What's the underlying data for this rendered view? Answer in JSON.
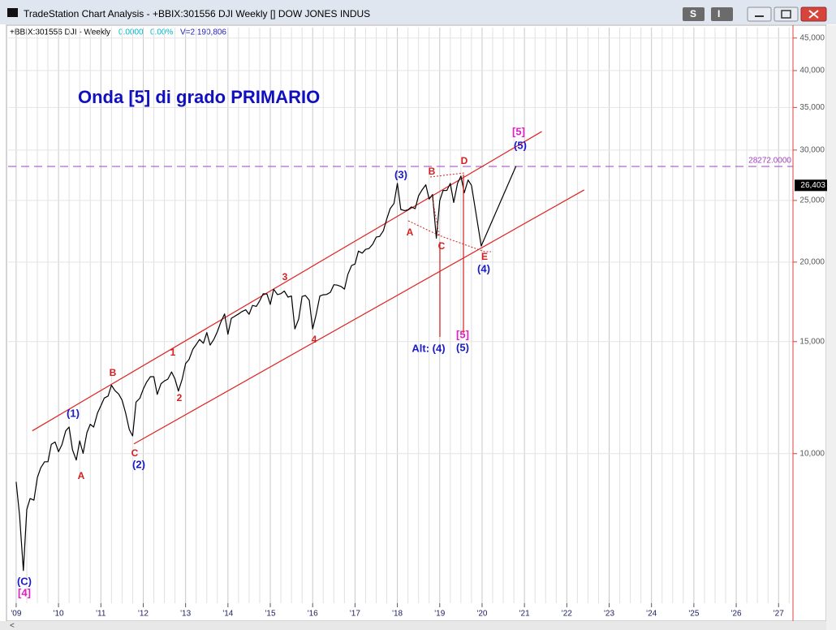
{
  "window": {
    "title": "TradeStation Chart Analysis - +BBIX:301556 DJI Weekly [] DOW JONES INDUS",
    "buttons": [
      "S",
      "I"
    ]
  },
  "info": {
    "symbol": "+BBIX:301556 DJI - Weekly",
    "change": "0.0000",
    "percent": "0.00%",
    "volume": "V=2,190,806"
  },
  "chart_data": {
    "type": "line",
    "title": "Onda [5] di grado PRIMARIO",
    "log_scale": true,
    "grid": true,
    "xlim": [
      2008.81,
      2027.34
    ],
    "ylim": [
      5820,
      46730
    ],
    "xticks": [
      {
        "value": 2009,
        "label": "'09"
      },
      {
        "value": 2010,
        "label": "'10"
      },
      {
        "value": 2011,
        "label": "'11"
      },
      {
        "value": 2012,
        "label": "'12"
      },
      {
        "value": 2013,
        "label": "'13"
      },
      {
        "value": 2014,
        "label": "'14"
      },
      {
        "value": 2015,
        "label": "'15"
      },
      {
        "value": 2016,
        "label": "'16"
      },
      {
        "value": 2017,
        "label": "'17"
      },
      {
        "value": 2018,
        "label": "'18"
      },
      {
        "value": 2019,
        "label": "'19"
      },
      {
        "value": 2020,
        "label": "'20"
      },
      {
        "value": 2021,
        "label": "'21"
      },
      {
        "value": 2022,
        "label": "'22"
      },
      {
        "value": 2023,
        "label": "'23"
      },
      {
        "value": 2024,
        "label": "'24"
      },
      {
        "value": 2025,
        "label": "'25"
      },
      {
        "value": 2026,
        "label": "'26"
      },
      {
        "value": 2027,
        "label": "'27"
      }
    ],
    "yticks": [
      {
        "value": 10000,
        "label": "10,000"
      },
      {
        "value": 15000,
        "label": "15,000"
      },
      {
        "value": 20000,
        "label": "20,000"
      },
      {
        "value": 25000,
        "label": "25,000"
      },
      {
        "value": 30000,
        "label": "30,000"
      },
      {
        "value": 35000,
        "label": "35,000"
      },
      {
        "value": 40000,
        "label": "40,000"
      },
      {
        "value": 45000,
        "label": "45,000"
      }
    ],
    "price": {
      "color": "#000000",
      "x": [
        2009.0,
        2009.08,
        2009.17,
        2009.25,
        2009.33,
        2009.42,
        2009.5,
        2009.58,
        2009.67,
        2009.75,
        2009.83,
        2009.92,
        2010.0,
        2010.08,
        2010.17,
        2010.25,
        2010.33,
        2010.42,
        2010.5,
        2010.58,
        2010.67,
        2010.75,
        2010.83,
        2010.92,
        2011.0,
        2011.08,
        2011.17,
        2011.25,
        2011.33,
        2011.42,
        2011.5,
        2011.58,
        2011.67,
        2011.75,
        2011.83,
        2011.92,
        2012.0,
        2012.08,
        2012.17,
        2012.25,
        2012.33,
        2012.42,
        2012.5,
        2012.58,
        2012.67,
        2012.75,
        2012.83,
        2012.92,
        2013.0,
        2013.08,
        2013.17,
        2013.25,
        2013.33,
        2013.42,
        2013.5,
        2013.58,
        2013.67,
        2013.75,
        2013.83,
        2013.92,
        2014.0,
        2014.08,
        2014.17,
        2014.25,
        2014.33,
        2014.42,
        2014.5,
        2014.58,
        2014.67,
        2014.75,
        2014.83,
        2014.92,
        2015.0,
        2015.08,
        2015.17,
        2015.25,
        2015.33,
        2015.42,
        2015.5,
        2015.58,
        2015.67,
        2015.75,
        2015.83,
        2015.92,
        2016.0,
        2016.08,
        2016.17,
        2016.25,
        2016.33,
        2016.42,
        2016.5,
        2016.58,
        2016.67,
        2016.75,
        2016.83,
        2016.92,
        2017.0,
        2017.08,
        2017.17,
        2017.25,
        2017.33,
        2017.42,
        2017.5,
        2017.58,
        2017.67,
        2017.75,
        2017.83,
        2017.92,
        2018.0,
        2018.08,
        2018.17,
        2018.25,
        2018.33,
        2018.42,
        2018.5,
        2018.58,
        2018.67,
        2018.75,
        2018.83,
        2018.92,
        2019.0,
        2019.08,
        2019.17,
        2019.25,
        2019.33,
        2019.42,
        2019.5,
        2019.58,
        2019.67,
        2019.75
      ],
      "values": [
        9030,
        8000,
        6550,
        8170,
        8500,
        8450,
        9170,
        9500,
        9710,
        9710,
        10340,
        10430,
        10070,
        10330,
        10860,
        11010,
        10140,
        9770,
        10470,
        10010,
        10790,
        11120,
        11010,
        11580,
        11890,
        12230,
        12320,
        12810,
        12570,
        12410,
        12140,
        11610,
        10910,
        10660,
        12050,
        12220,
        12630,
        12950,
        13210,
        13210,
        12390,
        12880,
        13010,
        13090,
        13440,
        13100,
        12540,
        13100,
        13860,
        14050,
        14580,
        14840,
        15120,
        14910,
        15500,
        14810,
        15130,
        15550,
        16090,
        16580,
        15400,
        16320,
        16460,
        16580,
        16720,
        16830,
        16560,
        17100,
        17040,
        17390,
        17830,
        17820,
        17160,
        18130,
        17780,
        17840,
        18010,
        17620,
        17690,
        15700,
        16280,
        17660,
        17720,
        17430,
        15700,
        16520,
        17690,
        17770,
        17790,
        17930,
        18430,
        18400,
        18310,
        18140,
        19120,
        19760,
        19860,
        20810,
        20660,
        20940,
        21010,
        21350,
        21890,
        21950,
        22410,
        23380,
        24270,
        24720,
        26600,
        24200,
        24100,
        24160,
        24420,
        24270,
        25420,
        25960,
        26460,
        25120,
        25540,
        21800,
        25000,
        25920,
        25930,
        26590,
        24820,
        26600,
        27300,
        25700,
        26920,
        26403
      ]
    },
    "projection": {
      "color": "#000000",
      "x": [
        2019.75,
        2019.98,
        2020.8
      ],
      "values": [
        26403,
        21200,
        28300
      ]
    },
    "trendline_color": "#e02020",
    "trendlines": [
      {
        "x": [
          2009.38,
          2021.41
        ],
        "values": [
          10860,
          32090
        ]
      },
      {
        "x": [
          2011.78,
          2022.41
        ],
        "values": [
          10360,
          25970
        ]
      }
    ],
    "hline": {
      "value": 28272,
      "label": "28272.0000",
      "color": "#a040c0"
    },
    "last_price": {
      "value": 26403,
      "label": "26,403"
    },
    "annotations": [
      {
        "text": "(C)",
        "color": "#1a1ac8"
      },
      {
        "text": "[4]",
        "color": "#e020c0"
      },
      {
        "text": "(1)",
        "color": "#1a1ac8"
      },
      {
        "text": "A",
        "color": "#d42020"
      },
      {
        "text": "B",
        "color": "#d42020"
      },
      {
        "text": "C",
        "color": "#d42020"
      },
      {
        "text": "(2)",
        "color": "#1a1ac8"
      },
      {
        "text": "1",
        "color": "#d42020"
      },
      {
        "text": "2",
        "color": "#d42020"
      },
      {
        "text": "3",
        "color": "#d42020"
      },
      {
        "text": "4",
        "color": "#d42020"
      },
      {
        "text": "(3)",
        "color": "#1a1ac8"
      },
      {
        "text": "B",
        "color": "#d42020"
      },
      {
        "text": "A",
        "color": "#d42020"
      },
      {
        "text": "C",
        "color": "#d42020"
      },
      {
        "text": "D",
        "color": "#d42020"
      },
      {
        "text": "E",
        "color": "#d42020"
      },
      {
        "text": "(4)",
        "color": "#1a1ac8"
      },
      {
        "text": "Alt: (4)",
        "color": "#1a1ac8"
      },
      {
        "text": "[5]",
        "color": "#e020c0"
      },
      {
        "text": "(5)",
        "color": "#1a1ac8"
      },
      {
        "text": "[5]",
        "color": "#e020c0"
      },
      {
        "text": "(5)",
        "color": "#1a1ac8"
      }
    ]
  }
}
